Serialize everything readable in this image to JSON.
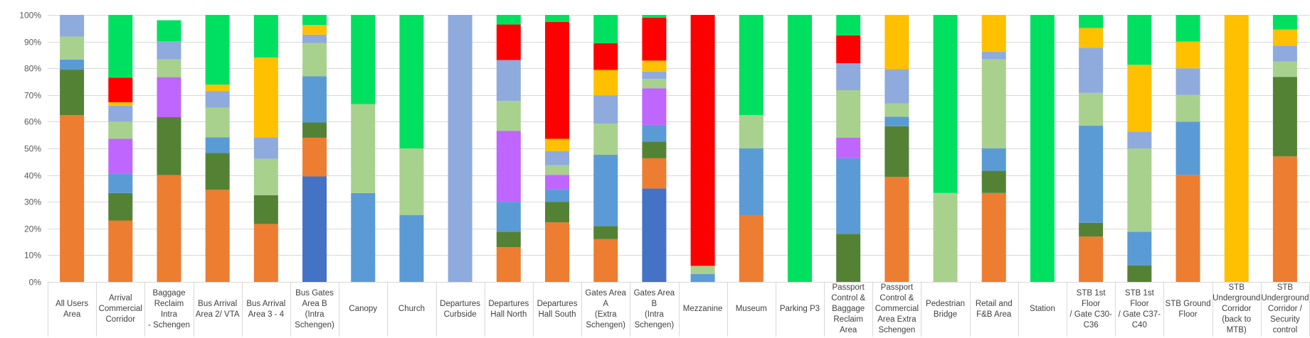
{
  "chart_data": {
    "type": "bar",
    "stacked": "percent",
    "ylim": [
      0,
      100
    ],
    "yticks": [
      "0%",
      "10%",
      "20%",
      "30%",
      "40%",
      "50%",
      "60%",
      "70%",
      "80%",
      "90%",
      "100%"
    ],
    "grid": true,
    "legend": "none",
    "categories": [
      [
        "All Users",
        "Area"
      ],
      [
        "Arrival",
        "Commercial",
        "Corridor"
      ],
      [
        "Baggage",
        "Reclaim Intra",
        "- Schengen"
      ],
      [
        "Bus Arrival",
        "Area 2/ VTA"
      ],
      [
        "Bus Arrival",
        "Area 3 - 4"
      ],
      [
        "Bus Gates",
        "Area B (Intra",
        "Schengen)"
      ],
      [
        "Canopy"
      ],
      [
        "Church"
      ],
      [
        "Departures",
        "Curbside"
      ],
      [
        "Departures",
        "Hall North"
      ],
      [
        "Departures",
        "Hall South"
      ],
      [
        "Gates Area A",
        "(Extra",
        "Schengen)"
      ],
      [
        "Gates Area B",
        "(Intra",
        "Schengen)"
      ],
      [
        "Mezzanine"
      ],
      [
        "Museum"
      ],
      [
        "Parking P3"
      ],
      [
        "Passport",
        "Control &",
        "Baggage",
        "Reclaim Area"
      ],
      [
        "Passport",
        "Control &",
        "Commercial",
        "Area Extra",
        "Schengen"
      ],
      [
        "Pedestrian",
        "Bridge"
      ],
      [
        "Retail and",
        "F&B Area"
      ],
      [
        "Station"
      ],
      [
        "STB 1st Floor",
        "/ Gate C30-",
        "C36"
      ],
      [
        "STB 1st Floor",
        "/ Gate C37-",
        "C40"
      ],
      [
        "STB Ground",
        "Floor"
      ],
      [
        "STB",
        "Underground",
        "Corridor",
        "(back to",
        "MTB)"
      ],
      [
        "STB",
        "Underground",
        "Corridor /",
        "Security",
        "control"
      ]
    ],
    "series_colors": [
      "#4472c4",
      "#ed7d31",
      "#548235",
      "#5b9bd5",
      "#bf66ff",
      "#a9d18e",
      "#8faadc",
      "#ffc000",
      "#ff0000",
      "#00e060"
    ],
    "series": [
      {
        "color": "#4472c4",
        "values": [
          0,
          0,
          0,
          0,
          0,
          39.5,
          0,
          0,
          0,
          0,
          0,
          0,
          35,
          0,
          0,
          0,
          0,
          0,
          0,
          0,
          0,
          0,
          0,
          0,
          0,
          0
        ]
      },
      {
        "color": "#ed7d31",
        "values": [
          62.5,
          23,
          40,
          34.5,
          21.7,
          14.5,
          0,
          0,
          0,
          13,
          22.3,
          16,
          11.3,
          0,
          25,
          0,
          0,
          39.3,
          0,
          33.3,
          0,
          17,
          0,
          40,
          0,
          47
        ]
      },
      {
        "color": "#548235",
        "values": [
          17,
          10.3,
          21.7,
          13.8,
          10.8,
          5.7,
          0,
          0,
          0,
          5.8,
          7.7,
          4.9,
          6.3,
          0,
          0,
          0,
          18,
          19,
          0,
          8.3,
          0,
          5.1,
          6.2,
          0,
          0,
          29.8
        ]
      },
      {
        "color": "#5b9bd5",
        "values": [
          3.8,
          7.3,
          0,
          5.9,
          0,
          17.3,
          33.3,
          25,
          0,
          11.2,
          4.8,
          26.7,
          6.2,
          3,
          25,
          0,
          28.3,
          3.6,
          0,
          8.4,
          0,
          36.4,
          12.6,
          20,
          0,
          0
        ]
      },
      {
        "color": "#bf66ff",
        "values": [
          0,
          13,
          15,
          0,
          0,
          0,
          0,
          0,
          0,
          26.6,
          5.3,
          0,
          13.7,
          0,
          0,
          0,
          7.7,
          0,
          0,
          0,
          0,
          0,
          0,
          0,
          0,
          0
        ]
      },
      {
        "color": "#a9d18e",
        "values": [
          8.6,
          6.4,
          6.6,
          11.1,
          13.6,
          12.5,
          33.3,
          25,
          0,
          11.2,
          3.6,
          11.7,
          3.5,
          3,
          12.5,
          0,
          17.8,
          4.9,
          33.3,
          33.4,
          0,
          12.3,
          31.2,
          10,
          0,
          5.7
        ]
      },
      {
        "color": "#8faadc",
        "values": [
          8.1,
          6,
          6.8,
          6.2,
          8,
          3.1,
          0,
          0,
          100,
          15.3,
          5.3,
          10.6,
          2.8,
          0,
          0,
          0,
          10.1,
          12.9,
          0,
          2.8,
          0,
          16.9,
          6.3,
          10,
          0,
          6
        ]
      },
      {
        "color": "#ffc000",
        "values": [
          0,
          1.3,
          0,
          2.4,
          29.9,
          3.6,
          0,
          0,
          0,
          0,
          4.6,
          9.5,
          4.1,
          0,
          0,
          0,
          0,
          20.3,
          0,
          13.8,
          0,
          7.4,
          25,
          10,
          100,
          6
        ]
      },
      {
        "color": "#ff0000",
        "values": [
          0,
          9.2,
          0,
          0,
          0,
          0,
          0,
          0,
          0,
          13.3,
          43.8,
          10,
          16.1,
          94,
          0,
          0,
          10.4,
          0,
          0,
          0,
          0,
          0,
          0,
          0,
          0,
          0
        ]
      },
      {
        "color": "#00e060",
        "values": [
          0,
          23.5,
          7.9,
          26.1,
          16,
          3.8,
          33.4,
          50,
          0,
          3.6,
          2.6,
          10.6,
          1,
          0,
          37.5,
          100,
          7.7,
          0,
          66.7,
          0,
          100,
          4.9,
          18.7,
          10,
          0,
          5.5
        ]
      }
    ]
  }
}
